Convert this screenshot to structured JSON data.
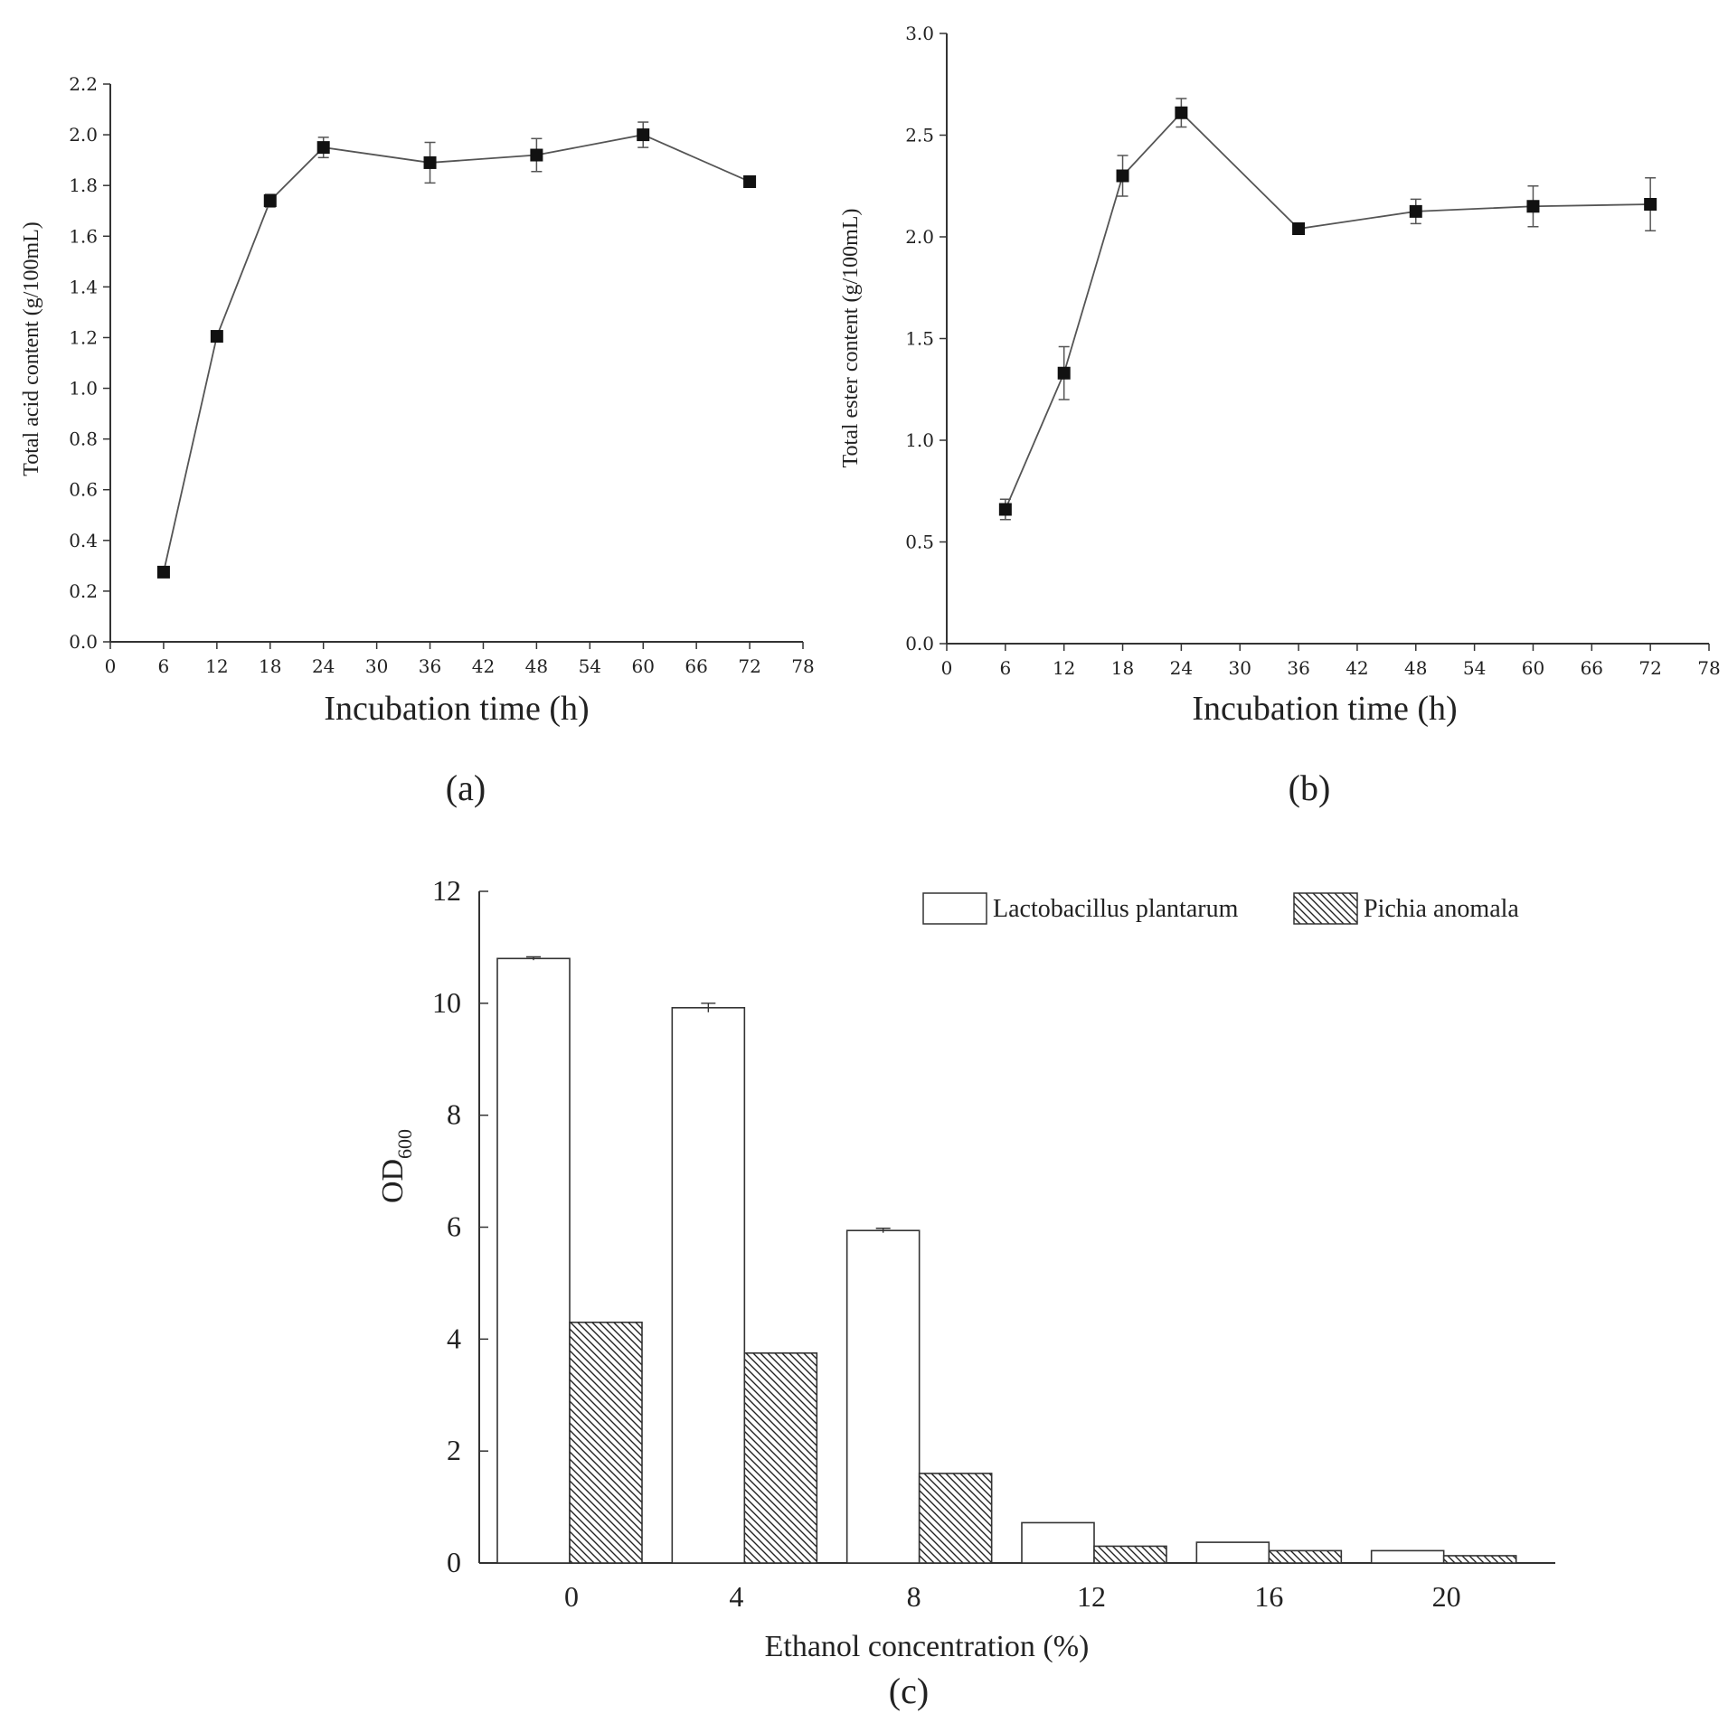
{
  "chart_data": [
    {
      "type": "line",
      "panel_label": "(a)",
      "xlabel": "Incubation time (h)",
      "ylabel": "Total acid content (g/100mL)",
      "xlim": [
        0,
        78
      ],
      "ylim": [
        0,
        2.2
      ],
      "xticks": [
        "0",
        "6",
        "12",
        "18",
        "24",
        "30",
        "36",
        "42",
        "48",
        "54",
        "60",
        "66",
        "72",
        "78"
      ],
      "yticks": [
        "0.0",
        "0.2",
        "0.4",
        "0.6",
        "0.8",
        "1.0",
        "1.2",
        "1.4",
        "1.6",
        "1.8",
        "2.0",
        "2.2"
      ],
      "x": [
        6,
        12,
        18,
        24,
        36,
        48,
        60,
        72
      ],
      "y": [
        0.275,
        1.205,
        1.74,
        1.95,
        1.89,
        1.92,
        2.0,
        1.815
      ],
      "err": [
        0.01,
        0.01,
        0.025,
        0.04,
        0.08,
        0.065,
        0.05,
        0.01
      ]
    },
    {
      "type": "line",
      "panel_label": "(b)",
      "xlabel": "Incubation time (h)",
      "ylabel": "Total ester content (g/100mL)",
      "xlim": [
        0,
        78
      ],
      "ylim": [
        0,
        3.0
      ],
      "xticks": [
        "0",
        "6",
        "12",
        "18",
        "24",
        "30",
        "36",
        "42",
        "48",
        "54",
        "60",
        "66",
        "72",
        "78"
      ],
      "yticks": [
        "0.0",
        "0.5",
        "1.0",
        "1.5",
        "2.0",
        "2.5",
        "3.0"
      ],
      "x": [
        6,
        12,
        18,
        24,
        36,
        48,
        60,
        72
      ],
      "y": [
        0.66,
        1.33,
        2.3,
        2.61,
        2.04,
        2.125,
        2.15,
        2.16
      ],
      "err": [
        0.05,
        0.13,
        0.1,
        0.07,
        0.02,
        0.06,
        0.1,
        0.13
      ]
    },
    {
      "type": "bar",
      "panel_label": "(c)",
      "xlabel": "Ethanol concentration (%)",
      "ylabel_main": "OD",
      "ylabel_sub": "600",
      "ylim": [
        0,
        12
      ],
      "yticks": [
        "0",
        "2",
        "4",
        "6",
        "8",
        "10",
        "12"
      ],
      "categories": [
        "0",
        "4",
        "8",
        "12",
        "16",
        "20"
      ],
      "series": [
        {
          "name": "Lactobacillus plantarum",
          "values": [
            10.8,
            9.92,
            5.94,
            0.72,
            0.37,
            0.22
          ],
          "err": [
            0.03,
            0.08,
            0.04,
            0,
            0,
            0
          ]
        },
        {
          "name": "Pichia anomala",
          "values": [
            4.3,
            3.75,
            1.6,
            0.3,
            0.22,
            0.13
          ],
          "err": [
            0,
            0,
            0,
            0,
            0,
            0
          ]
        }
      ]
    }
  ]
}
